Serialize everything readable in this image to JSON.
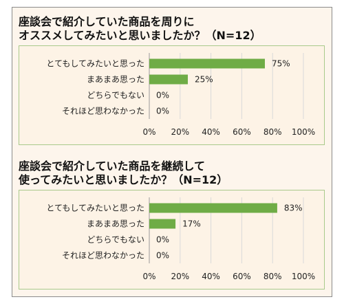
{
  "colors": {
    "bar": "#6fac46",
    "grid": "#d9d9d9",
    "panel_border": "#a8c98a",
    "background": "#fdf5ec"
  },
  "chart_data": [
    {
      "type": "bar",
      "orientation": "horizontal",
      "title_line1": "座談会で紹介していた商品を周りに",
      "title_line2": "オススメしてみたいと思いましたか？（N=12）",
      "categories": [
        "とてもしてみたいと思った",
        "まあまあ思った",
        "どちらでもない",
        "それほど思わなかった"
      ],
      "values": [
        75,
        25,
        0,
        0
      ],
      "value_labels": [
        "75%",
        "25%",
        "0%",
        "0%"
      ],
      "xlim": [
        0,
        100
      ],
      "x_ticks": [
        "0%",
        "20%",
        "40%",
        "60%",
        "80%",
        "100%"
      ],
      "grid": true
    },
    {
      "type": "bar",
      "orientation": "horizontal",
      "title_line1": "座談会で紹介していた商品を継続して",
      "title_line2": "使ってみたいと思いましたか？（N=12）",
      "categories": [
        "とてもしてみたいと思った",
        "まあまあ思った",
        "どちらでもない",
        "それほど思わなかった"
      ],
      "values": [
        83,
        17,
        0,
        0
      ],
      "value_labels": [
        "83%",
        "17%",
        "0%",
        "0%"
      ],
      "xlim": [
        0,
        100
      ],
      "x_ticks": [
        "0%",
        "20%",
        "40%",
        "60%",
        "80%",
        "100%"
      ],
      "grid": true
    }
  ]
}
